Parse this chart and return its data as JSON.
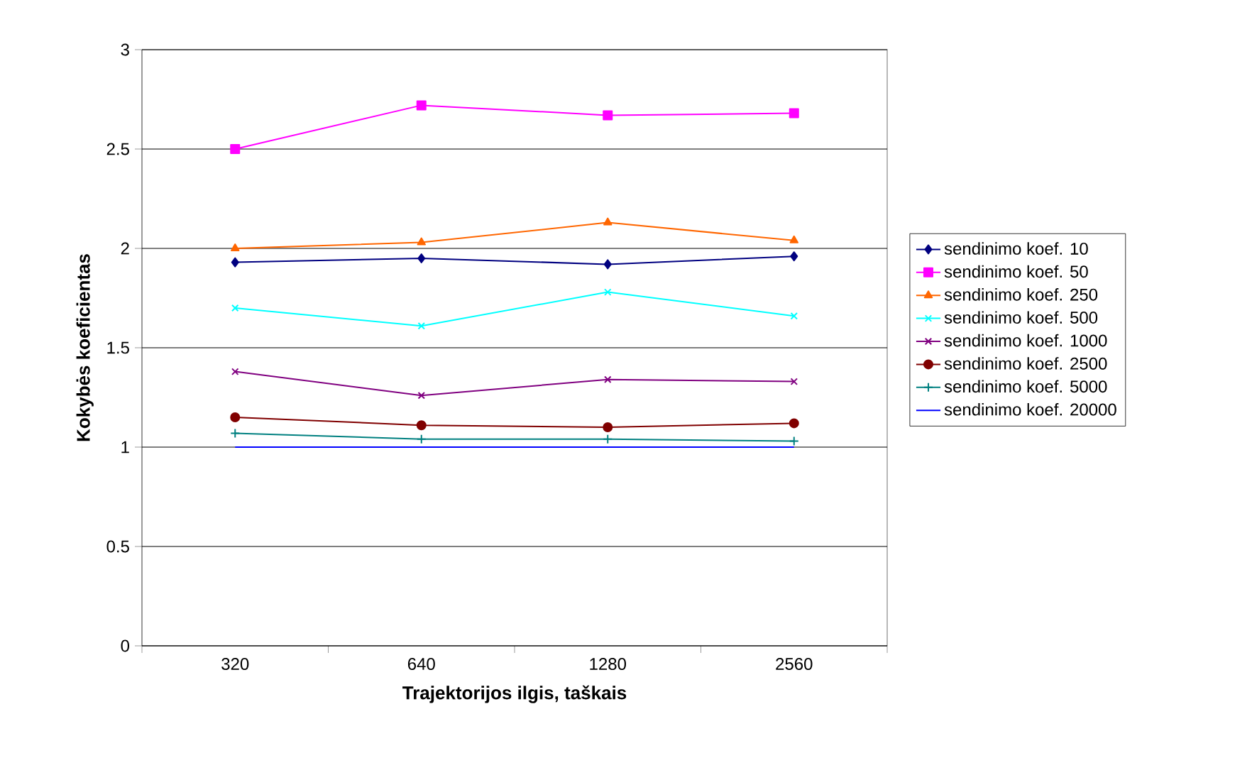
{
  "chart_data": {
    "type": "line",
    "xlabel": "Trajektorijos ilgis, taškais",
    "ylabel": "Kokybės koeficientas",
    "categories": [
      "320",
      "640",
      "1280",
      "2560"
    ],
    "ylim": [
      0,
      3
    ],
    "yticks": [
      0,
      0.5,
      1,
      1.5,
      2,
      2.5,
      3
    ],
    "grid": "y",
    "legend": "right",
    "line_style": "solid",
    "series": [
      {
        "name": "sendinimo koef. 10",
        "color": "#000080",
        "marker": "diamond",
        "values": [
          1.93,
          1.95,
          1.92,
          1.96
        ]
      },
      {
        "name": "sendinimo koef. 50",
        "color": "#ff00ff",
        "marker": "square",
        "values": [
          2.5,
          2.72,
          2.67,
          2.68
        ]
      },
      {
        "name": "sendinimo koef. 250",
        "color": "#ff6600",
        "marker": "triangle",
        "values": [
          2.0,
          2.03,
          2.13,
          2.04
        ]
      },
      {
        "name": "sendinimo koef. 500",
        "color": "#00ffff",
        "marker": "cross",
        "values": [
          1.7,
          1.61,
          1.78,
          1.66
        ]
      },
      {
        "name": "sendinimo koef. 1000",
        "color": "#800080",
        "marker": "cross",
        "values": [
          1.38,
          1.26,
          1.34,
          1.33
        ]
      },
      {
        "name": "sendinimo koef. 2500",
        "color": "#800000",
        "marker": "circle",
        "values": [
          1.15,
          1.11,
          1.1,
          1.12
        ]
      },
      {
        "name": "sendinimo koef. 5000",
        "color": "#008080",
        "marker": "plus",
        "values": [
          1.07,
          1.04,
          1.04,
          1.03
        ]
      },
      {
        "name": "sendinimo koef. 20000",
        "color": "#0000ff",
        "marker": "none",
        "values": [
          1.0,
          1.0,
          1.0,
          1.0
        ]
      }
    ]
  }
}
